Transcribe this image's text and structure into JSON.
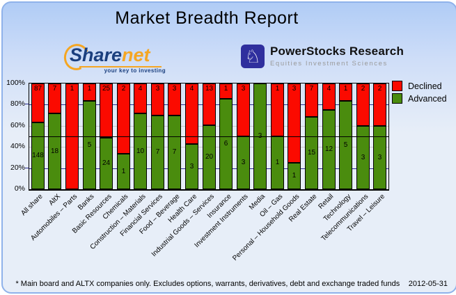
{
  "title": "Market Breadth Report",
  "logos": {
    "sharenet": {
      "word_part1": "Share",
      "word_part2": "net",
      "tagline": "your key to investing"
    },
    "powerstocks": {
      "icon": "knight-icon",
      "knight_glyph": "♘",
      "name": "PowerStocks  Research",
      "tagline": "Equities Investment Sciences"
    }
  },
  "chart_data": {
    "type": "bar",
    "stacked": true,
    "percent_stacked": true,
    "title": "Market Breadth Report",
    "categories": [
      "All share",
      "AltX",
      "Automobiles – Parts",
      "Banks",
      "Basic Resources",
      "Chemicals",
      "Construction – Materials",
      "Financial Services",
      "Food – Beverage",
      "Health Care",
      "Industrial Goods – Services",
      "Insurance",
      "Investment Instruments",
      "Media",
      "Oil – Gas",
      "Personal – Household Goods",
      "Real Estate",
      "Retail",
      "Technology",
      "Telecommunications",
      "Travel – Leisure"
    ],
    "series": [
      {
        "name": "Declined",
        "color": "#fb0a00",
        "values": [
          87,
          7,
          1,
          1,
          25,
          2,
          4,
          3,
          3,
          4,
          13,
          1,
          3,
          0,
          1,
          3,
          7,
          4,
          1,
          2,
          2
        ]
      },
      {
        "name": "Advanced",
        "color": "#4a8c0e",
        "values": [
          148,
          18,
          0,
          5,
          24,
          1,
          10,
          7,
          7,
          3,
          20,
          6,
          3,
          3,
          1,
          1,
          15,
          12,
          5,
          3,
          3
        ]
      }
    ],
    "ylim": [
      0,
      100
    ],
    "y_ticks": [
      "0%",
      "20%",
      "40%",
      "60%",
      "80%",
      "100%"
    ],
    "grid": {
      "major_levels": [
        20,
        80
      ],
      "major_color": "#2b2b91",
      "minor_levels": [
        40,
        60
      ],
      "minor_color": "#c8c8c8"
    },
    "reference_line": {
      "level": 50,
      "color": "#000000"
    },
    "legend_position": "top-right",
    "value_labels": true
  },
  "footer": {
    "note": "* Main board and ALTX companies only. Excludes options, warrants, derivatives, debt and exchange traded funds",
    "date": "2012-05-31"
  }
}
